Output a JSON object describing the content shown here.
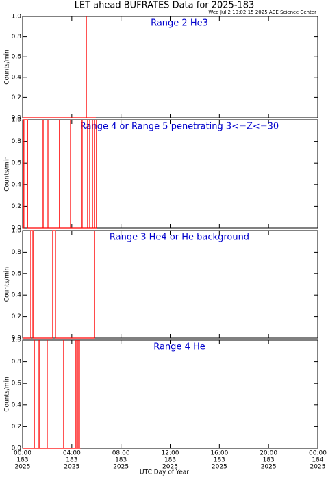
{
  "chart_data": [
    {
      "type": "line",
      "title": "LET ahead BUFRATES Data for 2025-183",
      "timestamp": "Wed Jul  2 10:02:15 2025 ACE Science Center",
      "annotation": "Range 2 He3",
      "ylabel": "Counts/min",
      "color": "#ff0000",
      "xlim": [
        0,
        24
      ],
      "ylim": [
        0,
        1
      ],
      "yticks": [
        {
          "value": 0,
          "label": "0.0"
        },
        {
          "value": 0.2,
          "label": "0.2"
        },
        {
          "value": 0.4,
          "label": "0.4"
        },
        {
          "value": 0.6,
          "label": "0.6"
        },
        {
          "value": 0.8,
          "label": "0.8"
        },
        {
          "value": 1,
          "label": "1.0"
        }
      ],
      "x": [
        0,
        5.18,
        5.18,
        5.18,
        5.95
      ],
      "values": [
        0,
        0,
        1,
        0,
        0
      ]
    },
    {
      "type": "line",
      "annotation": "Range 4 or Range 5 penetrating 3<=Z<=30",
      "ylabel": "Counts/min",
      "color": "#ff0000",
      "xlim": [
        0,
        24
      ],
      "ylim": [
        0,
        1
      ],
      "yticks": [
        {
          "value": 0,
          "label": "0.0"
        },
        {
          "value": 0.2,
          "label": "0.2"
        },
        {
          "value": 0.4,
          "label": "0.4"
        },
        {
          "value": 0.6,
          "label": "0.6"
        },
        {
          "value": 0.8,
          "label": "0.8"
        },
        {
          "value": 1,
          "label": "1.0"
        }
      ],
      "x": [
        0,
        0.1,
        0.1,
        0.4,
        0.4,
        1.67,
        1.67,
        1.67,
        2.0,
        2.0,
        2.0,
        2.12,
        2.12,
        2.12,
        3.0,
        3.0,
        3.0,
        3.9,
        3.9,
        3.9,
        4.84,
        4.84,
        4.84,
        5.29,
        5.29,
        5.29,
        5.46,
        5.46,
        5.46,
        5.68,
        5.68,
        5.68,
        5.85,
        5.85,
        5.85,
        6.01,
        6.01,
        6.01
      ],
      "values": [
        0,
        0,
        1,
        1,
        0,
        0,
        1,
        0,
        0,
        1,
        0,
        0,
        1,
        0,
        0,
        1,
        0,
        0,
        1,
        0,
        0,
        1,
        0,
        0,
        1,
        0,
        0,
        1,
        0,
        0,
        1,
        0,
        0,
        1,
        0,
        0,
        1,
        0
      ]
    },
    {
      "type": "line",
      "annotation": "Range 3 He4 or He background",
      "ylabel": "Counts/min",
      "color": "#ff0000",
      "xlim": [
        0,
        24
      ],
      "ylim": [
        0,
        1
      ],
      "yticks": [
        {
          "value": 0,
          "label": "0.0"
        },
        {
          "value": 0.2,
          "label": "0.2"
        },
        {
          "value": 0.4,
          "label": "0.4"
        },
        {
          "value": 0.6,
          "label": "0.6"
        },
        {
          "value": 0.8,
          "label": "0.8"
        },
        {
          "value": 1,
          "label": "1.0"
        }
      ],
      "x": [
        0,
        0.67,
        0.67,
        0.84,
        0.84,
        2.45,
        2.45,
        2.67,
        2.67,
        5.85,
        5.85,
        5.85
      ],
      "values": [
        0,
        0,
        1,
        1,
        0,
        0,
        1,
        1,
        0,
        0,
        1,
        0
      ]
    },
    {
      "type": "line",
      "annotation": "Range 4 He",
      "ylabel": "Counts/min",
      "xlabel": "UTC Day of Year",
      "color": "#ff0000",
      "xlim": [
        0,
        24
      ],
      "ylim": [
        0,
        1
      ],
      "yticks": [
        {
          "value": 0,
          "label": "0.0"
        },
        {
          "value": 0.2,
          "label": "0.2"
        },
        {
          "value": 0.4,
          "label": "0.4"
        },
        {
          "value": 0.6,
          "label": "0.6"
        },
        {
          "value": 0.8,
          "label": "0.8"
        },
        {
          "value": 1,
          "label": "1.0"
        }
      ],
      "xticks": [
        {
          "value": 0,
          "label": "00:00"
        },
        {
          "value": 4,
          "label": "04:00"
        },
        {
          "value": 8,
          "label": "08:00"
        },
        {
          "value": 12,
          "label": "12:00"
        },
        {
          "value": 16,
          "label": "16:00"
        },
        {
          "value": 20,
          "label": "20:00"
        },
        {
          "value": 24,
          "label": "00:00"
        }
      ],
      "xtick_days": [
        "183",
        "183",
        "183",
        "183",
        "183",
        "183",
        "184"
      ],
      "xtick_years": [
        "2025",
        "2025",
        "2025",
        "2025",
        "2025",
        "2025",
        "2025"
      ],
      "x": [
        0,
        0.95,
        0.95,
        0.95,
        1.34,
        1.34,
        1.34,
        2.0,
        2.0,
        2.0,
        3.34,
        3.34,
        3.34,
        4.34,
        4.34,
        4.34,
        4.51,
        4.51,
        4.51,
        4.62,
        4.62,
        4.62,
        4.7
      ],
      "values": [
        0,
        0,
        1,
        0,
        0,
        1,
        0,
        0,
        1,
        0,
        0,
        1,
        0,
        0,
        1,
        0,
        0,
        1,
        0,
        0,
        1,
        0,
        0
      ]
    }
  ]
}
